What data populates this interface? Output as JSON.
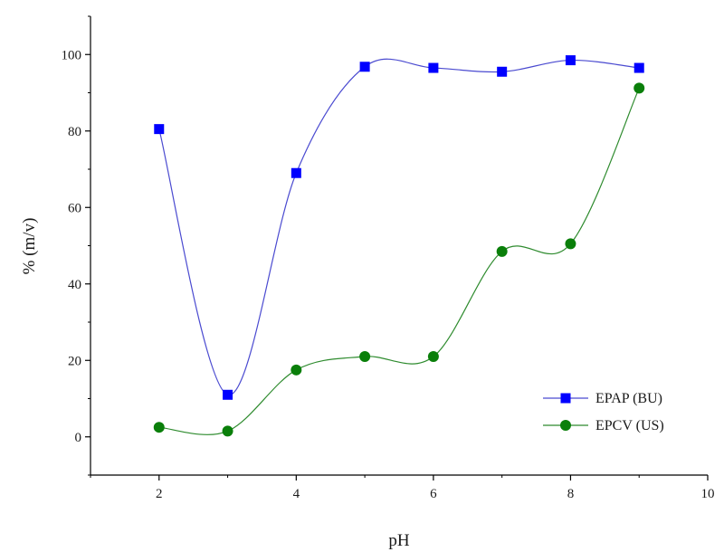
{
  "chart_data": {
    "type": "line",
    "title": "",
    "xlabel": "pH",
    "ylabel": "% (m/v)",
    "xlim": [
      1,
      10
    ],
    "ylim": [
      -10,
      110
    ],
    "x_ticks": [
      2,
      4,
      6,
      8,
      10
    ],
    "y_ticks": [
      0,
      20,
      40,
      60,
      80,
      100
    ],
    "legend_position": "bottom-right",
    "grid": false,
    "series": [
      {
        "name": "EPAP (BU)",
        "marker": "square",
        "color": "#0000ff",
        "line_color": "#4a4ad0",
        "x": [
          2,
          3,
          4,
          5,
          6,
          7,
          8,
          9
        ],
        "values": [
          80.5,
          11,
          69,
          96.8,
          96.5,
          95.5,
          98.5,
          96.5
        ]
      },
      {
        "name": "EPCV (US)",
        "marker": "circle",
        "color": "#0a7f0a",
        "line_color": "#2e8b2e",
        "x": [
          2,
          3,
          4,
          5,
          6,
          7,
          8,
          9
        ],
        "values": [
          2.5,
          1.5,
          17.5,
          21,
          21,
          48.5,
          50.5,
          91.2
        ]
      }
    ]
  }
}
